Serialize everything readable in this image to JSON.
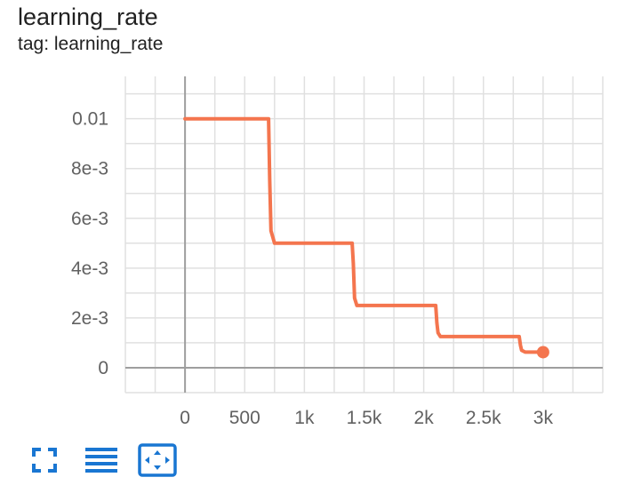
{
  "card": {
    "title": "learning_rate",
    "tag": "tag: learning_rate"
  },
  "toolbar": {
    "buttons": [
      {
        "icon": "fullscreen-icon"
      },
      {
        "icon": "list-icon"
      },
      {
        "icon": "fit-domain-icon"
      }
    ],
    "icon_color": "#1976d2"
  },
  "colors": {
    "series": "#f4754e",
    "grid": "#e0e0e0",
    "axis": "#9e9e9e"
  },
  "chart_data": {
    "type": "line",
    "title": "learning_rate",
    "xlabel": "",
    "ylabel": "",
    "xlim": [
      -500,
      3500
    ],
    "ylim": [
      -0.001,
      0.0117
    ],
    "x_ticks": [
      {
        "value": 0,
        "label": "0"
      },
      {
        "value": 500,
        "label": "500"
      },
      {
        "value": 1000,
        "label": "1k"
      },
      {
        "value": 1500,
        "label": "1.5k"
      },
      {
        "value": 2000,
        "label": "2k"
      },
      {
        "value": 2500,
        "label": "2.5k"
      },
      {
        "value": 3000,
        "label": "3k"
      }
    ],
    "y_ticks": [
      {
        "value": 0,
        "label": "0"
      },
      {
        "value": 0.002,
        "label": "2e-3"
      },
      {
        "value": 0.004,
        "label": "4e-3"
      },
      {
        "value": 0.006,
        "label": "6e-3"
      },
      {
        "value": 0.008,
        "label": "8e-3"
      },
      {
        "value": 0.01,
        "label": "0.01"
      }
    ],
    "grid": true,
    "series": [
      {
        "x": [
          0,
          700,
          710,
          720,
          750,
          1400,
          1410,
          1420,
          1440,
          2100,
          2110,
          2120,
          2140,
          2800,
          2810,
          2820,
          2850,
          3000
        ],
        "y": [
          0.01,
          0.01,
          0.0075,
          0.0055,
          0.005,
          0.005,
          0.0042,
          0.0028,
          0.0025,
          0.0025,
          0.0018,
          0.0014,
          0.00125,
          0.00125,
          0.0009,
          0.0007,
          0.000625,
          0.000625
        ]
      }
    ],
    "marker": {
      "x": 3000,
      "y": 0.000625
    }
  }
}
